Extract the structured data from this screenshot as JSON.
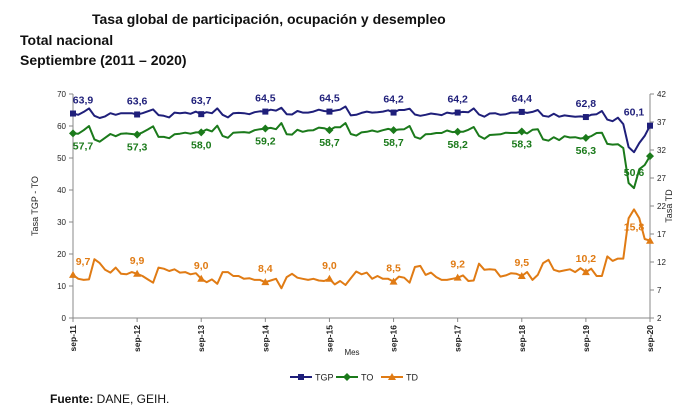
{
  "header": {
    "title": "Tasa global de participación, ocupación y desempleo",
    "subtitle_1": "Total nacional",
    "subtitle_2": "Septiembre (2011 – 2020)"
  },
  "footer": {
    "source_label": "Fuente:",
    "source_text": " DANE, GEIH."
  },
  "chart_data": {
    "type": "line",
    "title": "Tasa global de participación, ocupación y desempleo",
    "xlabel": "Mes",
    "ylabel_left": "Tasa TGP - TO",
    "ylabel_right": "Tasa  TD",
    "y_left": {
      "min": 0,
      "max": 70,
      "ticks": [
        0,
        10,
        20,
        30,
        40,
        50,
        60,
        70
      ]
    },
    "y_right": {
      "min": 2,
      "max": 42,
      "ticks": [
        2,
        7,
        12,
        17,
        22,
        27,
        32,
        37,
        42
      ]
    },
    "x_ticks": [
      "sep-11",
      "sep-12",
      "sep-13",
      "sep-14",
      "sep-15",
      "sep-16",
      "sep-17",
      "sep-18",
      "sep-19",
      "sep-20"
    ],
    "legend": {
      "position": "bottom",
      "entries": [
        "TGP",
        "TO",
        "TD"
      ]
    },
    "colors": {
      "TGP": "#1f1f7a",
      "TO": "#1b7a1b",
      "TD": "#e07b14"
    },
    "series": [
      {
        "name": "TGP",
        "axis": "left",
        "september_values": [
          63.9,
          63.6,
          63.7,
          64.5,
          64.5,
          64.2,
          64.2,
          64.4,
          62.8,
          60.1
        ],
        "september_labels": [
          "63,9",
          "63,6",
          "63,7",
          "64,5",
          "64,5",
          "64,2",
          "64,2",
          "64,4",
          "62,8",
          "60,1"
        ],
        "monthly": [
          [
            63.9,
            63.5,
            64.4,
            65.5,
            63.2,
            62.5,
            63.0,
            64.0,
            63.5,
            64.0,
            64.0,
            64.0
          ],
          [
            63.6,
            64.0,
            64.6,
            65.2,
            63.4,
            63.2,
            62.7,
            64.2,
            64.0,
            64.2,
            63.8,
            64.5
          ],
          [
            63.7,
            64.3,
            64.0,
            65.5,
            63.5,
            62.7,
            64.0,
            64.1,
            64.0,
            63.7,
            64.3,
            64.6
          ],
          [
            64.5,
            65.1,
            64.8,
            65.7,
            63.7,
            63.6,
            64.7,
            64.2,
            64.2,
            64.5,
            65.1,
            64.7
          ],
          [
            64.5,
            64.8,
            65.1,
            66.1,
            63.3,
            63.5,
            64.1,
            64.5,
            64.2,
            64.3,
            64.5,
            64.9
          ],
          [
            64.2,
            65.0,
            65.0,
            65.4,
            63.6,
            63.2,
            63.5,
            63.9,
            63.7,
            63.4,
            64.2,
            63.9
          ],
          [
            64.2,
            64.4,
            64.3,
            65.5,
            63.6,
            62.9,
            63.9,
            64.0,
            63.5,
            63.7,
            64.2,
            64.2
          ],
          [
            64.4,
            64.1,
            64.4,
            65.0,
            63.2,
            62.9,
            63.8,
            62.9,
            63.3,
            63.1,
            62.9,
            63.0
          ],
          [
            62.8,
            63.5,
            63.7,
            64.7,
            62.0,
            61.5,
            62.6,
            60.6,
            53.4,
            51.8,
            54.7,
            56.9
          ],
          [
            60.1
          ]
        ]
      },
      {
        "name": "TO",
        "axis": "left",
        "september_values": [
          57.7,
          57.3,
          58.0,
          59.2,
          58.7,
          58.7,
          58.2,
          58.3,
          56.3,
          50.6
        ],
        "september_labels": [
          "57,7",
          "57,3",
          "58,0",
          "59,2",
          "58,7",
          "58,7",
          "58,2",
          "58,3",
          "56,3",
          "50,6"
        ],
        "monthly": [
          [
            57.7,
            57.6,
            58.7,
            60.0,
            55.8,
            55.1,
            56.3,
            57.5,
            56.8,
            57.6,
            57.7,
            57.5
          ],
          [
            57.3,
            58.0,
            58.9,
            59.9,
            56.6,
            56.6,
            56.2,
            57.4,
            57.6,
            57.9,
            57.6,
            58.0
          ],
          [
            58.0,
            58.9,
            58.3,
            60.1,
            56.9,
            56.3,
            57.9,
            58.0,
            58.1,
            57.9,
            58.7,
            59.0
          ],
          [
            59.2,
            59.4,
            59.0,
            60.9,
            57.4,
            57.3,
            58.8,
            58.2,
            58.6,
            58.7,
            59.5,
            59.3
          ],
          [
            58.7,
            59.6,
            59.6,
            60.9,
            57.5,
            57.0,
            58.0,
            58.2,
            58.6,
            58.2,
            58.7,
            59.1
          ],
          [
            58.7,
            58.9,
            59.0,
            60.0,
            56.6,
            56.0,
            57.4,
            57.5,
            57.8,
            57.8,
            58.6,
            58.1
          ],
          [
            58.2,
            58.2,
            58.8,
            59.7,
            56.9,
            56.0,
            57.2,
            57.3,
            57.4,
            57.9,
            57.8,
            57.8
          ],
          [
            58.3,
            57.7,
            58.8,
            59.0,
            55.8,
            55.4,
            56.5,
            55.6,
            56.8,
            56.4,
            56.5,
            56.1
          ],
          [
            56.3,
            56.8,
            57.8,
            57.9,
            54.4,
            54.2,
            54.3,
            53.1,
            42.2,
            40.6,
            46.5,
            47.8
          ],
          [
            50.6
          ]
        ]
      },
      {
        "name": "TD",
        "axis": "right",
        "september_values": [
          9.7,
          9.9,
          9.0,
          8.4,
          9.0,
          8.5,
          9.2,
          9.5,
          10.2,
          15.8
        ],
        "september_labels": [
          "9,7",
          "9,9",
          "9,0",
          "8,4",
          "9,0",
          "8,5",
          "9,2",
          "9,5",
          "10,2",
          "15,8"
        ],
        "monthly": [
          [
            9.7,
            9.0,
            8.8,
            8.9,
            12.5,
            11.8,
            10.6,
            10.1,
            11.0,
            9.9,
            9.8,
            10.2
          ],
          [
            9.9,
            9.5,
            8.9,
            8.3,
            11.0,
            10.8,
            10.4,
            10.7,
            10.1,
            10.2,
            9.8,
            10.0
          ],
          [
            9.0,
            8.4,
            8.9,
            8.1,
            10.2,
            10.2,
            9.5,
            9.5,
            9.0,
            9.1,
            8.8,
            8.8
          ],
          [
            8.4,
            8.7,
            9.0,
            7.3,
            9.3,
            9.9,
            9.2,
            9.0,
            8.8,
            9.0,
            8.7,
            8.6
          ],
          [
            9.0,
            8.0,
            8.6,
            7.9,
            9.1,
            10.3,
            9.8,
            10.1,
            9.0,
            9.5,
            9.0,
            9.0
          ],
          [
            8.5,
            9.4,
            9.2,
            8.3,
            11.1,
            11.3,
            9.7,
            10.1,
            9.3,
            8.8,
            8.8,
            9.0
          ],
          [
            9.2,
            9.6,
            8.6,
            8.7,
            11.7,
            10.6,
            10.7,
            10.6,
            9.4,
            9.6,
            10.0,
            9.9
          ],
          [
            9.5,
            10.2,
            8.8,
            9.7,
            11.8,
            12.4,
            10.6,
            10.3,
            10.5,
            10.7,
            10.2,
            10.9
          ],
          [
            10.2,
            10.8,
            9.5,
            9.5,
            13.0,
            12.2,
            12.6,
            12.6,
            19.8,
            21.4,
            19.8,
            16.1
          ],
          [
            15.8
          ]
        ]
      }
    ],
    "data_labels_tgp": [
      "63,9",
      "63,6",
      "63,7",
      "64,5",
      "64,5",
      "64,2",
      "64,2",
      "64,4",
      "62,8",
      "60,1"
    ],
    "data_labels_to": [
      "57,7",
      "57,3",
      "58,0",
      "59,2",
      "58,7",
      "58,7",
      "58,2",
      "58,3",
      "56,3",
      "50,6"
    ],
    "data_labels_td": [
      "9,7",
      "9,9",
      "9,0",
      "8,4",
      "9,0",
      "8,5",
      "9,2",
      "9,5",
      "10,2",
      "15,8"
    ]
  }
}
